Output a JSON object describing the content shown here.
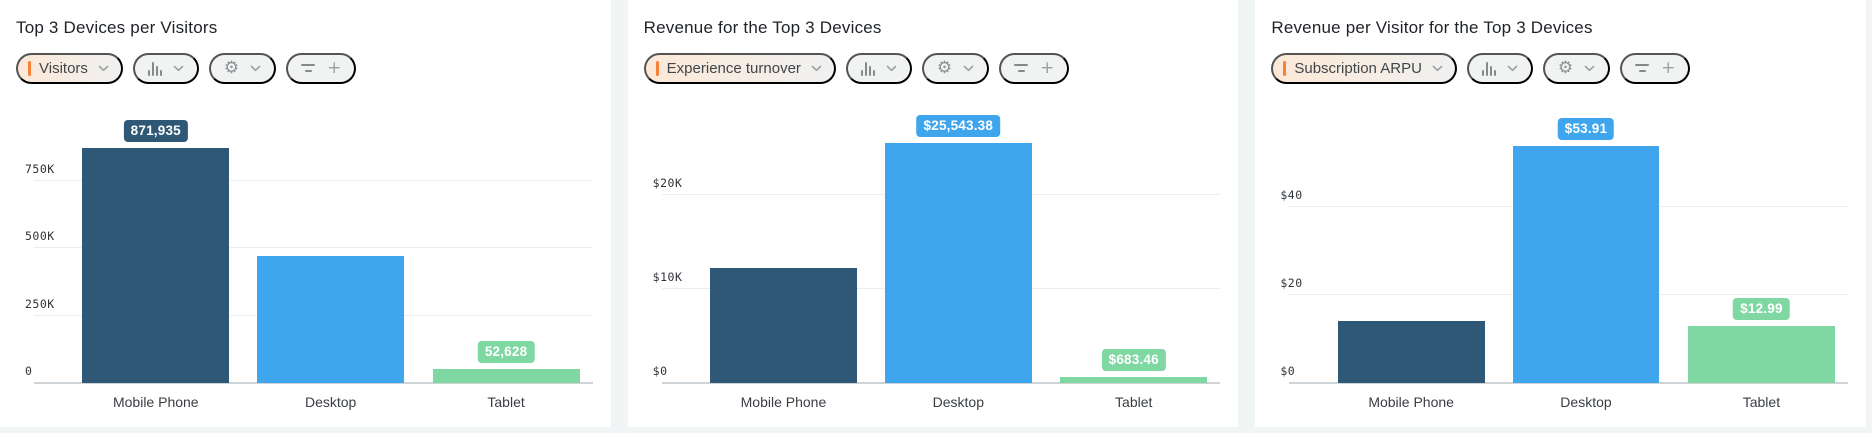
{
  "page": {
    "background": "#f2f5f6",
    "card_background": "#ffffff",
    "accent_color": "#f58238"
  },
  "toolbar_icons": {
    "chevron_down": "chevron-down",
    "chart_type": "bar-chart",
    "settings": "gear",
    "filter": "filter-lines",
    "add": "+"
  },
  "chart_data": [
    {
      "type": "bar",
      "title": "Top 3 Devices per Visitors",
      "metric": "Visitors",
      "categories": [
        "Mobile Phone",
        "Desktop",
        "Tablet"
      ],
      "values": [
        871935,
        470000,
        52628
      ],
      "value_labels": [
        "871,935",
        null,
        "52,628"
      ],
      "bar_colors": [
        "#2f5876",
        "#3fa5ed",
        "#7fd7a2"
      ],
      "yticks": [
        {
          "value": 0,
          "label": "0"
        },
        {
          "value": 250000,
          "label": "250K"
        },
        {
          "value": 500000,
          "label": "500K"
        },
        {
          "value": 750000,
          "label": "750K"
        }
      ],
      "ymax": 1052000,
      "xlabel": "",
      "ylabel": "",
      "grid": true,
      "legend": "none"
    },
    {
      "type": "bar",
      "title": "Revenue for the Top 3 Devices",
      "metric": "Experience turnover",
      "categories": [
        "Mobile Phone",
        "Desktop",
        "Tablet"
      ],
      "values": [
        12200,
        25543.38,
        683.46
      ],
      "value_labels": [
        null,
        "$25,543.38",
        "$683.46"
      ],
      "bar_colors": [
        "#2f5876",
        "#3fa5ed",
        "#7fd7a2"
      ],
      "yticks": [
        {
          "value": 0,
          "label": "$0"
        },
        {
          "value": 10000,
          "label": "$10K"
        },
        {
          "value": 20000,
          "label": "$20K"
        }
      ],
      "ymax": 30200,
      "xlabel": "",
      "ylabel": "",
      "grid": true,
      "legend": "none"
    },
    {
      "type": "bar",
      "title": "Revenue per Visitor for the Top 3 Devices",
      "metric": "Subscription ARPU",
      "categories": [
        "Mobile Phone",
        "Desktop",
        "Tablet"
      ],
      "values": [
        14.1,
        53.91,
        12.99
      ],
      "value_labels": [
        null,
        "$53.91",
        "$12.99"
      ],
      "bar_colors": [
        "#2f5876",
        "#3fa5ed",
        "#7fd7a2"
      ],
      "yticks": [
        {
          "value": 0,
          "label": "$0"
        },
        {
          "value": 20,
          "label": "$20"
        },
        {
          "value": 40,
          "label": "$40"
        }
      ],
      "ymax": 64.5,
      "xlabel": "",
      "ylabel": "",
      "grid": true,
      "legend": "none"
    }
  ]
}
